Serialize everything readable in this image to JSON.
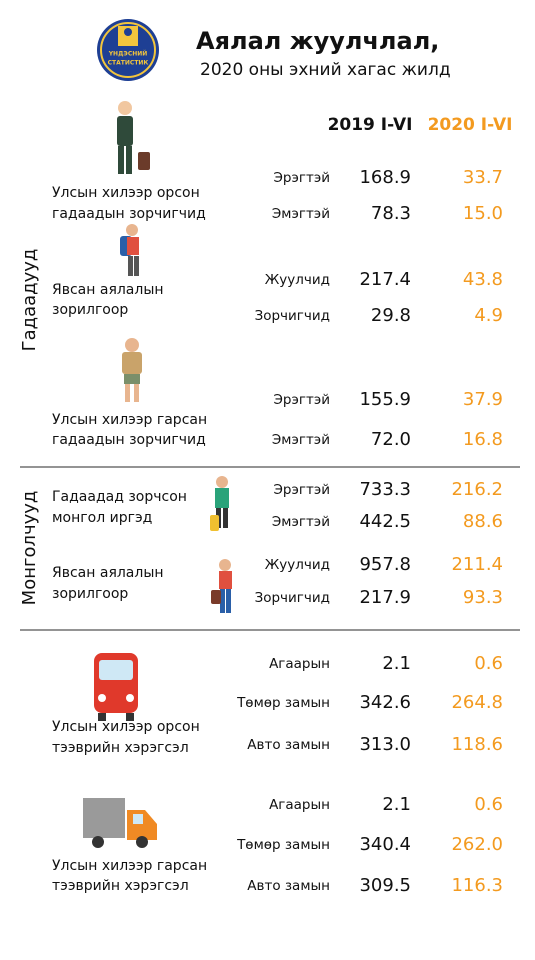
{
  "header": {
    "title": "Аялал жуулчлал,",
    "subtitle": "2020 оны эхний хагас жилд",
    "logo_text": [
      "ҮНДЭСНИЙ",
      "СТАТИСТИК"
    ]
  },
  "columns": [
    "2019 I-VI",
    "2020 I-VI"
  ],
  "sections": [
    {
      "label": "Гадаадууд",
      "groups": [
        {
          "label": [
            "Улсын хилээр орсон",
            "гадаадын зорчигчид"
          ],
          "rows": [
            [
              "Эрэгтэй",
              "168.9",
              "33.7"
            ],
            [
              "Эмэгтэй",
              "78.3",
              "15.0"
            ]
          ]
        },
        {
          "label": [
            "Явсан аялалын",
            "зорилгоор"
          ],
          "rows": [
            [
              "Жуулчид",
              "217.4",
              "43.8"
            ],
            [
              "Зорчигчид",
              "29.8",
              "4.9"
            ]
          ]
        },
        {
          "label": [
            "Улсын хилээр гарсан",
            "гадаадын зорчигчид"
          ],
          "rows": [
            [
              "Эрэгтэй",
              "155.9",
              "37.9"
            ],
            [
              "Эмэгтэй",
              "72.0",
              "16.8"
            ]
          ]
        }
      ]
    },
    {
      "label": "Монголчууд",
      "groups": [
        {
          "label": [
            "Гадаадад зорчсон",
            "монгол иргэд"
          ],
          "rows": [
            [
              "Эрэгтэй",
              "733.3",
              "216.2"
            ],
            [
              "Эмэгтэй",
              "442.5",
              "88.6"
            ]
          ]
        },
        {
          "label": [
            "Явсан аялалын",
            "зорилгоор"
          ],
          "rows": [
            [
              "Жуулчид",
              "957.8",
              "211.4"
            ],
            [
              "Зорчигчид",
              "217.9",
              "93.3"
            ]
          ]
        }
      ]
    },
    {
      "groups": [
        {
          "label": [
            "Улсын хилээр орсон",
            "тээврийн хэрэгсэл"
          ],
          "rows": [
            [
              "Агаарын",
              "2.1",
              "0.6"
            ],
            [
              "Төмөр замын",
              "342.6",
              "264.8"
            ],
            [
              "Авто замын",
              "313.0",
              "118.6"
            ]
          ]
        },
        {
          "label": [
            "Улсын хилээр гарсан",
            "тээврийн хэрэгсэл"
          ],
          "rows": [
            [
              "Агаарын",
              "2.1",
              "0.6"
            ],
            [
              "Төмөр замын",
              "340.4",
              "262.0"
            ],
            [
              "Авто замын",
              "309.5",
              "116.3"
            ]
          ]
        }
      ]
    }
  ]
}
